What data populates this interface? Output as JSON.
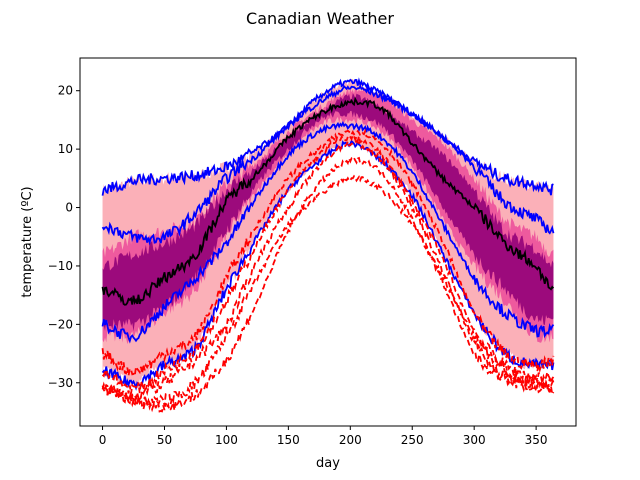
{
  "chart_data": {
    "type": "line",
    "title": "Canadian Weather",
    "xlabel": "day",
    "ylabel": "temperature (ºC)",
    "xlim": [
      -18.2,
      382.2
    ],
    "ylim": [
      -37.4,
      25.6
    ],
    "xticks": [
      0,
      50,
      100,
      150,
      200,
      250,
      300,
      350
    ],
    "yticks": [
      -30,
      -20,
      -10,
      0,
      10,
      20
    ],
    "grid": false,
    "control_days": [
      0,
      25,
      50,
      75,
      100,
      125,
      150,
      175,
      200,
      225,
      250,
      275,
      300,
      325,
      350,
      364
    ],
    "bands": [
      {
        "role": "outer envelope",
        "color": "#fbb0b8",
        "upper": [
          3,
          4.5,
          5,
          5.5,
          7,
          10,
          14,
          19,
          21.5,
          19.5,
          16,
          12,
          8,
          5,
          4,
          3
        ],
        "lower": [
          -28,
          -30,
          -27,
          -24,
          -14,
          -5,
          3,
          8,
          11,
          8,
          2,
          -8,
          -18,
          -25,
          -27,
          -27
        ]
      },
      {
        "role": "central region",
        "color": "#ee5a9e",
        "upper": [
          -8,
          -5,
          -4,
          -2,
          4,
          8,
          13,
          17,
          20,
          19,
          15,
          11,
          5,
          -2,
          -5,
          -8
        ],
        "lower": [
          -22,
          -22,
          -18,
          -14,
          -5,
          3,
          9,
          14,
          15,
          13,
          7,
          -2,
          -10,
          -16,
          -22,
          -22
        ]
      },
      {
        "role": "inner region",
        "color": "#9c0a7c",
        "upper": [
          -10,
          -8,
          -6,
          -3,
          3,
          7,
          12,
          16,
          19,
          17,
          13,
          9,
          3,
          -4,
          -7,
          -10
        ],
        "lower": [
          -20,
          -20,
          -17,
          -12,
          -4,
          4,
          10,
          15,
          16,
          14,
          8,
          0,
          -8,
          -14,
          -19,
          -19
        ]
      }
    ],
    "series": [
      {
        "role": "median",
        "color": "#000000",
        "style": "solid",
        "values": [
          -14,
          -16,
          -12,
          -8,
          1,
          6,
          12,
          16,
          18,
          17,
          11,
          5,
          0,
          -6,
          -10,
          -14
        ]
      },
      {
        "role": "envelope",
        "color": "#0000ff",
        "style": "solid",
        "values": [
          3,
          4.5,
          5,
          5.5,
          7,
          10,
          14,
          19,
          21.5,
          19.5,
          16,
          12,
          8,
          5,
          4,
          3
        ]
      },
      {
        "role": "envelope",
        "color": "#0000ff",
        "style": "solid",
        "values": [
          -3,
          -5,
          -5,
          -1,
          5,
          9,
          14,
          18,
          20.5,
          19,
          16,
          12,
          7,
          1,
          -2,
          -4
        ]
      },
      {
        "role": "envelope",
        "color": "#0000ff",
        "style": "solid",
        "values": [
          -20,
          -22,
          -17,
          -12,
          -6,
          2,
          9,
          13,
          14,
          12,
          6,
          -3,
          -12,
          -18,
          -21,
          -21
        ]
      },
      {
        "role": "envelope",
        "color": "#0000ff",
        "style": "solid",
        "values": [
          -28,
          -30,
          -27,
          -24,
          -14,
          -5,
          3,
          8,
          11,
          8,
          2,
          -8,
          -18,
          -25,
          -27,
          -27
        ]
      },
      {
        "role": "outlier",
        "color": "#ff0000",
        "style": "dashed",
        "values": [
          -25,
          -28,
          -25,
          -22,
          -12,
          -3,
          5,
          10,
          13,
          11,
          4,
          -6,
          -18,
          -25,
          -27,
          -26
        ]
      },
      {
        "role": "outlier",
        "color": "#ff0000",
        "style": "dashed",
        "values": [
          -28,
          -31,
          -28,
          -24,
          -16,
          -6,
          3,
          9,
          12,
          9,
          1,
          -9,
          -21,
          -27,
          -29,
          -29
        ]
      },
      {
        "role": "outlier",
        "color": "#ff0000",
        "style": "dashed",
        "values": [
          -31,
          -32,
          -30,
          -26,
          -20,
          -9,
          0,
          7,
          11,
          8,
          0,
          -11,
          -23,
          -29,
          -30,
          -30
        ]
      },
      {
        "role": "outlier",
        "color": "#ff0000",
        "style": "dashed",
        "values": [
          -31,
          -33,
          -34,
          -32,
          -26,
          -16,
          -4,
          4,
          8,
          6,
          -2,
          -13,
          -25,
          -29,
          -31,
          -30
        ]
      },
      {
        "role": "outlier",
        "color": "#ff0000",
        "style": "dashed",
        "values": [
          -31,
          -33,
          -33,
          -30,
          -22,
          -12,
          -3,
          2,
          5,
          3,
          -3,
          -12,
          -22,
          -28,
          -30,
          -31
        ]
      }
    ]
  }
}
